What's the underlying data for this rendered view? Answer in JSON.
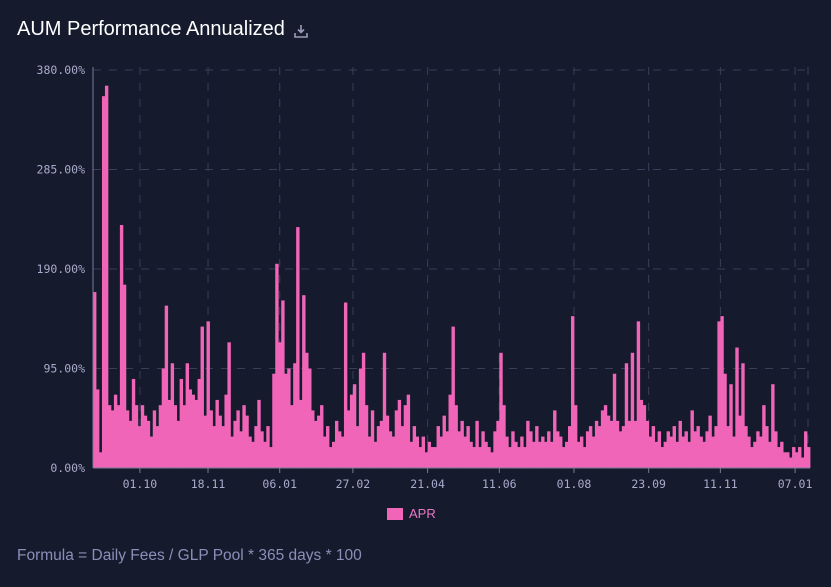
{
  "header": {
    "title": "AUM Performance Annualized",
    "download_icon": "download-icon"
  },
  "footer": {
    "formula": "Formula = Daily Fees / GLP Pool * 365 days * 100"
  },
  "colors": {
    "background": "#161a2d",
    "bar": "#f065b8",
    "grid": "#3a3e58",
    "tick_text": "#a9abcc"
  },
  "chart_data": {
    "type": "bar",
    "title": "AUM Performance Annualized",
    "xlabel": "",
    "ylabel": "",
    "ylim": [
      0,
      380
    ],
    "y_ticks": [
      {
        "value": 0,
        "label": "0.00%"
      },
      {
        "value": 95,
        "label": "95.00%"
      },
      {
        "value": 190,
        "label": "190.00%"
      },
      {
        "value": 285,
        "label": "285.00%"
      },
      {
        "value": 380,
        "label": "380.00%"
      }
    ],
    "x_ticks": [
      {
        "index": 15.7,
        "label": "01.10"
      },
      {
        "index": 38.5,
        "label": "18.11"
      },
      {
        "index": 62.5,
        "label": "06.01"
      },
      {
        "index": 87,
        "label": "27.02"
      },
      {
        "index": 112,
        "label": "21.04"
      },
      {
        "index": 136,
        "label": "11.06"
      },
      {
        "index": 161,
        "label": "01.08"
      },
      {
        "index": 186,
        "label": "23.09"
      },
      {
        "index": 210,
        "label": "11.11"
      },
      {
        "index": 235,
        "label": "07.01"
      }
    ],
    "grid": true,
    "legend": {
      "position": "bottom-center",
      "entries": [
        "APR"
      ]
    },
    "series": [
      {
        "name": "APR",
        "values": [
          168,
          75,
          15,
          355,
          365,
          60,
          55,
          70,
          60,
          232,
          175,
          55,
          45,
          85,
          60,
          40,
          60,
          50,
          45,
          30,
          55,
          40,
          60,
          95,
          155,
          65,
          100,
          60,
          45,
          85,
          60,
          100,
          75,
          70,
          65,
          85,
          135,
          50,
          140,
          55,
          40,
          65,
          50,
          40,
          70,
          120,
          30,
          45,
          55,
          35,
          60,
          50,
          30,
          25,
          40,
          65,
          35,
          25,
          40,
          20,
          90,
          195,
          120,
          160,
          90,
          95,
          60,
          100,
          230,
          65,
          165,
          110,
          95,
          55,
          45,
          50,
          60,
          30,
          40,
          20,
          25,
          45,
          35,
          30,
          158,
          55,
          70,
          80,
          40,
          95,
          110,
          60,
          30,
          55,
          25,
          40,
          45,
          110,
          50,
          35,
          30,
          55,
          65,
          40,
          60,
          70,
          25,
          40,
          30,
          20,
          30,
          15,
          25,
          20,
          20,
          40,
          30,
          50,
          35,
          70,
          135,
          60,
          35,
          45,
          30,
          40,
          25,
          20,
          45,
          20,
          35,
          25,
          20,
          15,
          35,
          45,
          110,
          60,
          30,
          20,
          35,
          25,
          20,
          30,
          20,
          45,
          35,
          25,
          40,
          25,
          30,
          25,
          35,
          25,
          55,
          35,
          30,
          20,
          25,
          40,
          145,
          60,
          25,
          30,
          20,
          35,
          40,
          30,
          45,
          40,
          55,
          60,
          50,
          45,
          90,
          45,
          35,
          40,
          100,
          45,
          110,
          45,
          140,
          65,
          60,
          45,
          30,
          40,
          25,
          35,
          20,
          25,
          35,
          30,
          40,
          25,
          45,
          30,
          35,
          25,
          55,
          35,
          40,
          30,
          25,
          35,
          50,
          30,
          40,
          140,
          145,
          90,
          40,
          80,
          30,
          115,
          50,
          100,
          40,
          30,
          20,
          25,
          35,
          30,
          60,
          40,
          25,
          80,
          35,
          20,
          25,
          15,
          15,
          10,
          20,
          15,
          20,
          10,
          35,
          20
        ]
      }
    ]
  }
}
